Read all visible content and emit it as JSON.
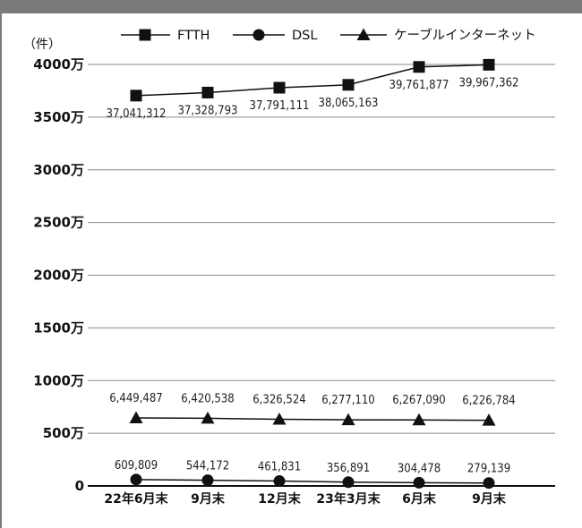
{
  "chart_data": {
    "type": "line",
    "unit_label": "（件）",
    "categories": [
      "22年6月末",
      "9月末",
      "12月末",
      "23年3月末",
      "6月末",
      "9月末"
    ],
    "ylim": [
      0,
      40000000
    ],
    "yticks": [
      {
        "value": 0,
        "label": "0"
      },
      {
        "value": 5000000,
        "label": "500万"
      },
      {
        "value": 10000000,
        "label": "1000万"
      },
      {
        "value": 15000000,
        "label": "1500万"
      },
      {
        "value": 20000000,
        "label": "2000万"
      },
      {
        "value": 25000000,
        "label": "2500万"
      },
      {
        "value": 30000000,
        "label": "3000万"
      },
      {
        "value": 35000000,
        "label": "3500万"
      },
      {
        "value": 40000000,
        "label": "4000万"
      }
    ],
    "grid": true,
    "legend": "top",
    "series": [
      {
        "name": "FTTH",
        "marker": "square",
        "values": [
          37041312,
          37328793,
          37791111,
          38065163,
          39761877,
          39967362
        ],
        "labels": [
          "37,041,312",
          "37,328,793",
          "37,791,111",
          "38,065,163",
          "39,761,877",
          "39,967,362"
        ]
      },
      {
        "name": "DSL",
        "marker": "circle",
        "values": [
          609809,
          544172,
          461831,
          356891,
          304478,
          279139
        ],
        "labels": [
          "609,809",
          "544,172",
          "461,831",
          "356,891",
          "304,478",
          "279,139"
        ]
      },
      {
        "name": "ケーブルインターネット",
        "marker": "triangle",
        "values": [
          6449487,
          6420538,
          6326524,
          6277110,
          6267090,
          6226784
        ],
        "labels": [
          "6,449,487",
          "6,420,538",
          "6,326,524",
          "6,277,110",
          "6,267,090",
          "6,226,784"
        ]
      }
    ]
  }
}
